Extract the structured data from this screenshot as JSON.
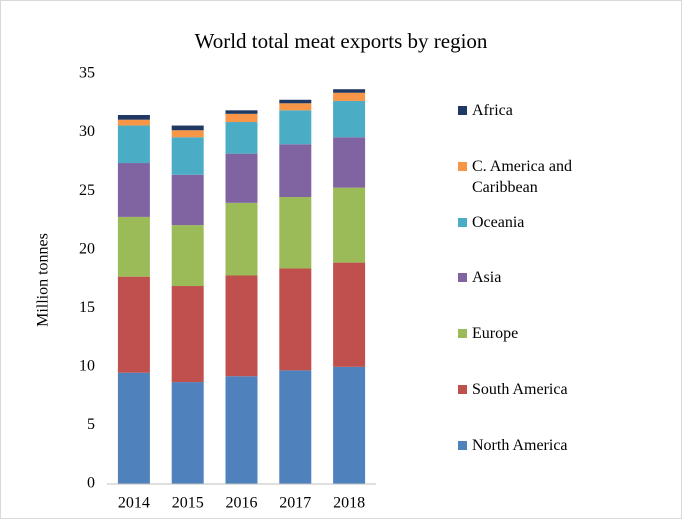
{
  "chart_data": {
    "type": "stacked_bar",
    "title": "World total meat exports by region",
    "ylabel": "Million tonnes",
    "categories": [
      "2014",
      "2015",
      "2016",
      "2017",
      "2018"
    ],
    "series": [
      {
        "name": "North America",
        "color": "#4f81bd",
        "values": [
          9.5,
          8.7,
          9.2,
          9.7,
          10.0
        ]
      },
      {
        "name": "South America",
        "color": "#c0504d",
        "values": [
          8.2,
          8.2,
          8.6,
          8.7,
          8.9
        ]
      },
      {
        "name": "Europe",
        "color": "#9bbb59",
        "values": [
          5.1,
          5.2,
          6.2,
          6.1,
          6.4
        ]
      },
      {
        "name": "Asia",
        "color": "#8064a2",
        "values": [
          4.6,
          4.3,
          4.2,
          4.5,
          4.3
        ]
      },
      {
        "name": "Oceania",
        "color": "#4bacc6",
        "values": [
          3.2,
          3.2,
          2.7,
          2.9,
          3.1
        ]
      },
      {
        "name": "C. America and Caribbean",
        "color": "#f79646",
        "values": [
          0.5,
          0.6,
          0.7,
          0.6,
          0.7
        ]
      },
      {
        "name": "Africa",
        "color": "#1f3864",
        "values": [
          0.4,
          0.4,
          0.3,
          0.3,
          0.3
        ]
      }
    ],
    "ylim": [
      0,
      35
    ],
    "yticks": [
      0,
      5,
      10,
      15,
      20,
      25,
      30,
      35
    ],
    "legend": "right"
  }
}
